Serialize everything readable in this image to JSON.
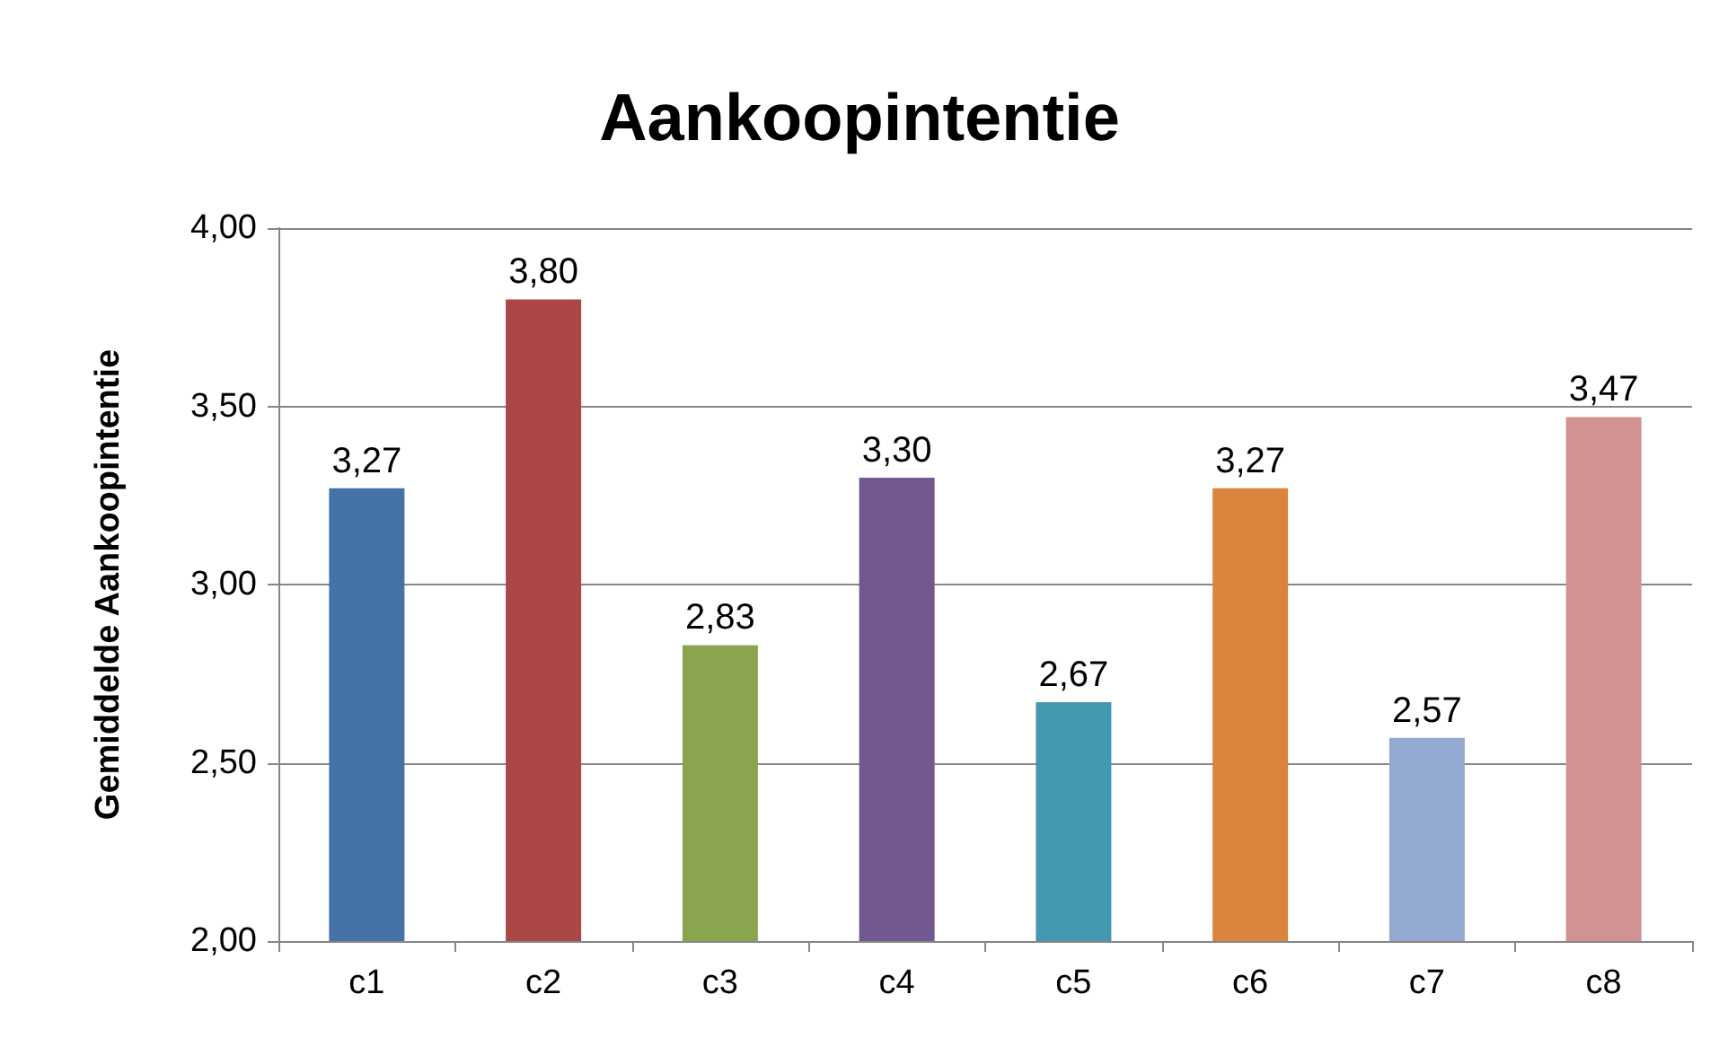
{
  "chart_data": {
    "type": "bar",
    "title": "Aankoopintentie",
    "ylabel": "Gemiddelde Aankoopintentie",
    "categories": [
      "c1",
      "c2",
      "c3",
      "c4",
      "c5",
      "c6",
      "c7",
      "c8"
    ],
    "values": [
      3.27,
      3.8,
      2.83,
      3.3,
      2.67,
      3.27,
      2.57,
      3.47
    ],
    "colors": [
      "#4572a7",
      "#aa4643",
      "#89a54e",
      "#71588f",
      "#4198af",
      "#db843d",
      "#93a9cf",
      "#d19392"
    ],
    "value_labels": [
      "3,27",
      "3,80",
      "2,83",
      "3,30",
      "2,67",
      "3,27",
      "2,57",
      "3,47"
    ],
    "ylim": [
      2,
      4
    ],
    "yticks": [
      {
        "value": 2,
        "label": "2,00"
      },
      {
        "value": 2.5,
        "label": "2,50"
      },
      {
        "value": 3,
        "label": "3,00"
      },
      {
        "value": 3.5,
        "label": "3,50"
      },
      {
        "value": 4,
        "label": "4,00"
      }
    ],
    "grid": "y"
  }
}
